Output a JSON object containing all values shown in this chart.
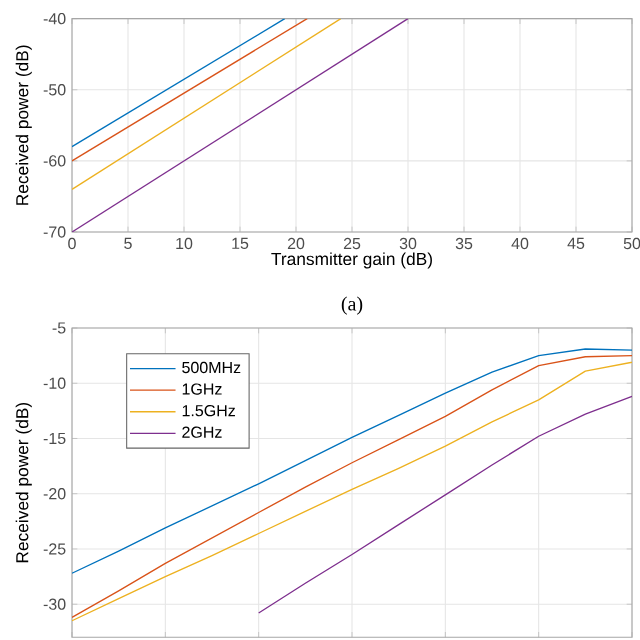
{
  "chart_data": [
    {
      "type": "line",
      "xlabel": "Transmitter gain (dB)",
      "ylabel": "Received power (dB)",
      "annotations": [
        "(a)"
      ],
      "xlim": [
        0,
        50
      ],
      "xticks": [
        0,
        5,
        10,
        15,
        20,
        25,
        30,
        35,
        40,
        45,
        50
      ],
      "ylim": [
        -70,
        -40
      ],
      "yticks": [
        -70,
        -60,
        -50,
        -40
      ],
      "grid": true,
      "series": [
        {
          "color": "#0072bd",
          "x": [
            0,
            19
          ],
          "values": [
            -58,
            -40
          ]
        },
        {
          "color": "#d95319",
          "x": [
            0,
            21
          ],
          "values": [
            -60,
            -40
          ]
        },
        {
          "color": "#edb120",
          "x": [
            0,
            24
          ],
          "values": [
            -64,
            -40
          ]
        },
        {
          "color": "#7e2f8e",
          "x": [
            0,
            30
          ],
          "values": [
            -70,
            -40
          ]
        }
      ]
    },
    {
      "type": "line",
      "ylabel": "Received power (dB)",
      "categories": [
        null,
        null,
        null,
        null,
        null,
        null,
        null,
        null,
        null,
        null,
        null,
        null,
        null
      ],
      "ylim": [
        -33,
        -5
      ],
      "yticks": [
        -30,
        -25,
        -20,
        -15,
        -10,
        -5
      ],
      "grid": true,
      "legend": "top left",
      "tick_labels": "y",
      "series": [
        {
          "name": "500MHz",
          "color": "#0072bd",
          "values": [
            -27.2,
            -25.2,
            -23.1,
            -21.1,
            -19.1,
            -17.0,
            -14.9,
            -12.9,
            -10.9,
            -9.0,
            -7.5,
            -6.9,
            -7.0
          ]
        },
        {
          "name": "1GHz",
          "color": "#d95319",
          "values": [
            -31.2,
            -28.8,
            -26.3,
            -24.0,
            -21.7,
            -19.4,
            -17.2,
            -15.1,
            -13.0,
            -10.6,
            -8.4,
            -7.6,
            -7.5
          ]
        },
        {
          "name": "1.5GHz",
          "color": "#edb120",
          "values": [
            -31.5,
            -29.5,
            -27.5,
            -25.6,
            -23.6,
            -21.6,
            -19.6,
            -17.7,
            -15.7,
            -13.5,
            -11.5,
            -8.9,
            -8.1
          ]
        },
        {
          "name": "2GHz",
          "color": "#7e2f8e",
          "values": [
            null,
            null,
            null,
            null,
            -30.8,
            -28.1,
            -25.5,
            -22.8,
            -20.1,
            -17.4,
            -14.8,
            -12.8,
            -11.2
          ]
        }
      ]
    }
  ]
}
